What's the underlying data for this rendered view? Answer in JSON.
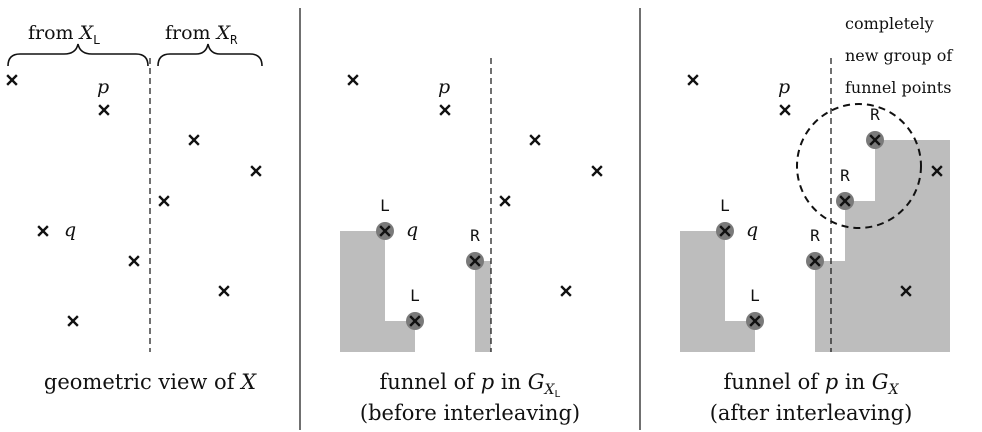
{
  "panels": [
    {
      "caption_main": "geometric view of ",
      "caption_var": "X",
      "brace_left_text": "from ",
      "brace_left_var": "X",
      "brace_left_sub": "L",
      "brace_right_text": "from ",
      "brace_right_var": "X",
      "brace_right_sub": "R",
      "label_p": "p",
      "label_q": "q"
    },
    {
      "caption_line1_text": "funnel of ",
      "caption_line1_var": "p",
      "caption_line1_in": " in ",
      "caption_line1_G": "G",
      "caption_line1_subvar": "X",
      "caption_line1_subsub": "L",
      "caption_line2": "(before interleaving)",
      "label_p": "p",
      "label_q": "q",
      "tags": [
        "L",
        "L",
        "R"
      ]
    },
    {
      "caption_line1_text": "funnel of ",
      "caption_line1_var": "p",
      "caption_line1_in": " in ",
      "caption_line1_G": "G",
      "caption_line1_subvar": "X",
      "caption_line2": "(after interleaving)",
      "label_p": "p",
      "label_q": "q",
      "tags": [
        "L",
        "L",
        "R",
        "R",
        "R"
      ],
      "note_lines": [
        "completely",
        "new group of",
        "funnel points"
      ]
    }
  ],
  "colors": {
    "shade": "#bdbdbd",
    "funnel_point": "#7a7a7a",
    "ink": "#111111"
  }
}
